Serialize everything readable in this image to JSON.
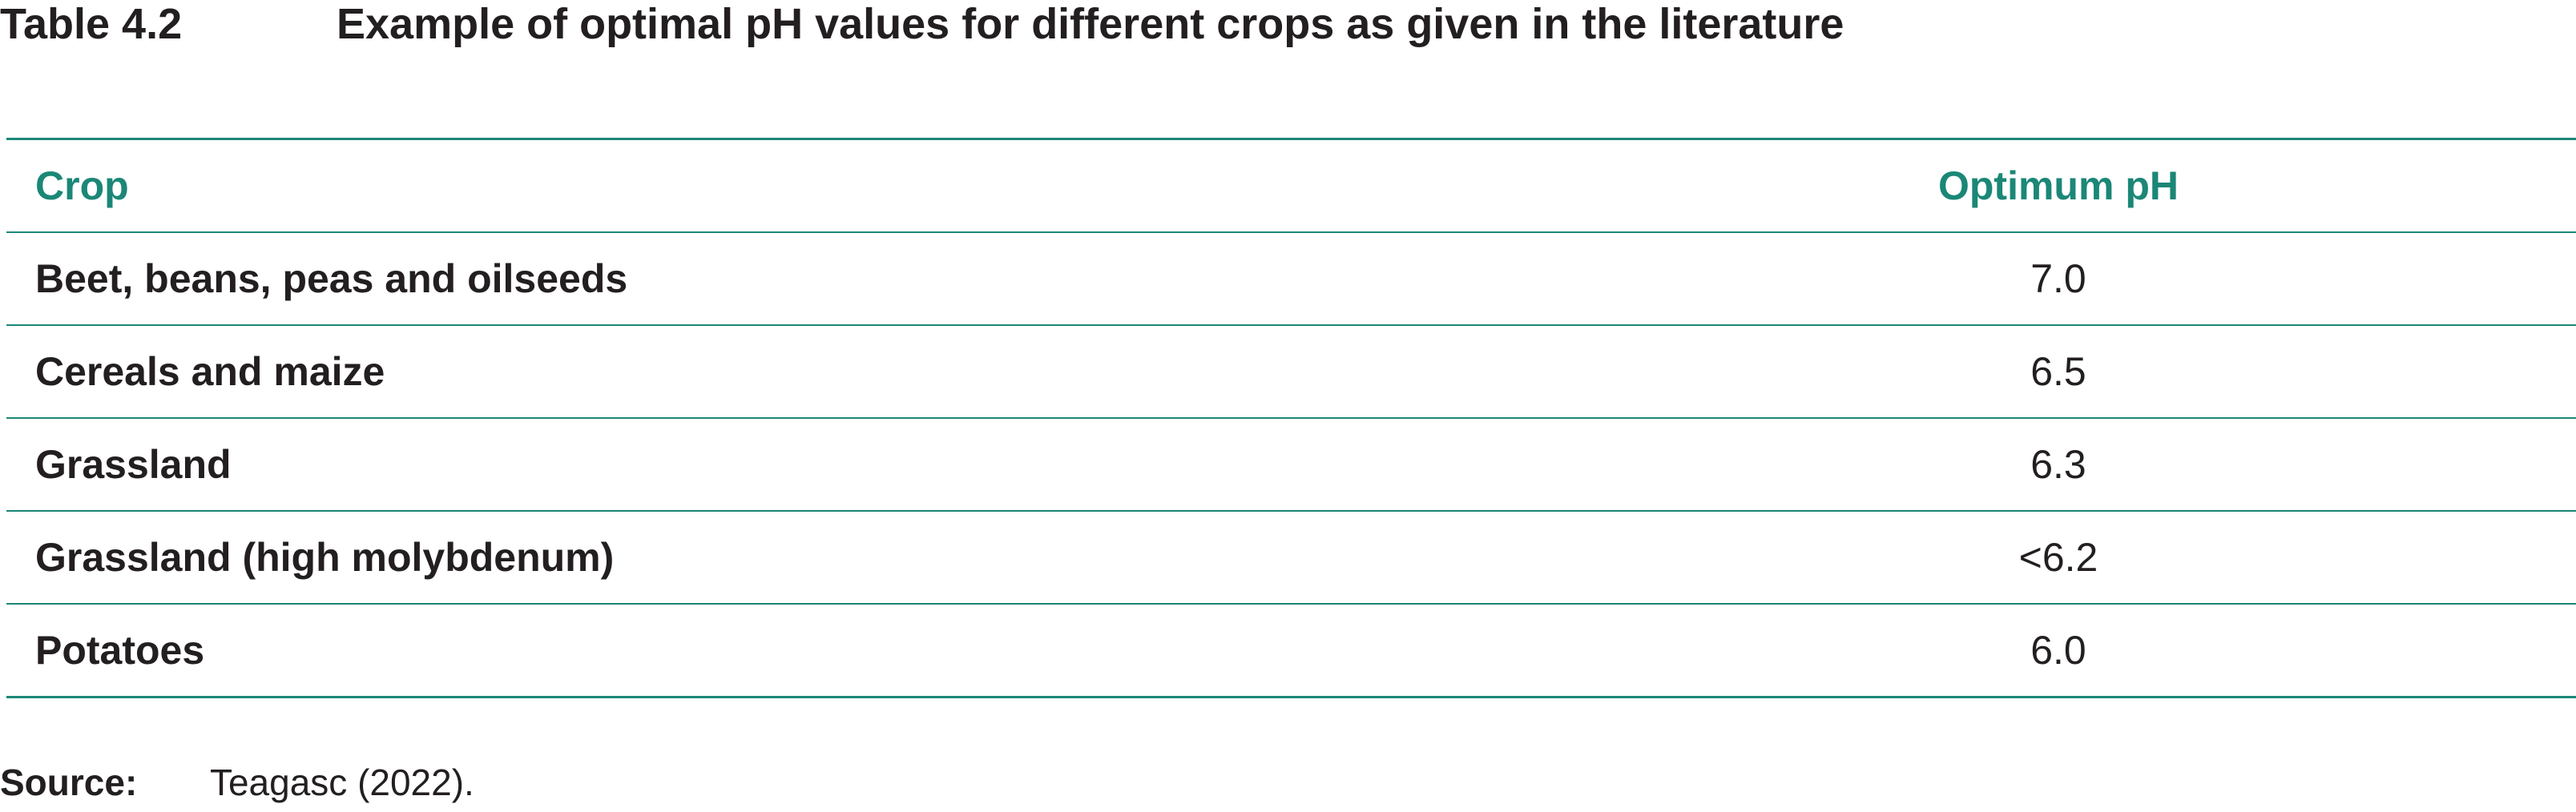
{
  "caption": {
    "label": "Table 4.2",
    "title": "Example of optimal pH values for different crops as given in the literature"
  },
  "table": {
    "headers": {
      "crop": "Crop",
      "optimum_ph": "Optimum pH"
    },
    "rows": [
      {
        "crop": "Beet, beans, peas and oilseeds",
        "ph": "7.0"
      },
      {
        "crop": "Cereals and maize",
        "ph": "6.5"
      },
      {
        "crop": "Grassland",
        "ph": "6.3"
      },
      {
        "crop": "Grassland (high molybdenum)",
        "ph": "<6.2"
      },
      {
        "crop": "Potatoes",
        "ph": "6.0"
      }
    ]
  },
  "source": {
    "label": "Source:",
    "text": "Teagasc (2022)."
  },
  "colors": {
    "accent": "#1b8777",
    "text": "#231f20"
  }
}
